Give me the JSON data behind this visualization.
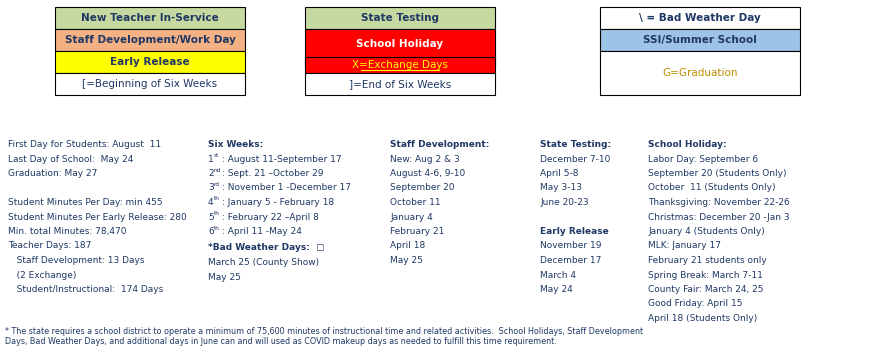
{
  "bg_color": "#ffffff",
  "blue": "#1F3864",
  "gold": "#BF8F00",
  "col1_text": [
    {
      "text": "First Day for Students: August  11",
      "bold": false
    },
    {
      "text": "Last Day of School:  May 24",
      "bold": false
    },
    {
      "text": "Graduation: May 27",
      "bold": false
    },
    {
      "text": "",
      "bold": false
    },
    {
      "text": "Student Minutes Per Day: min 455",
      "bold": false
    },
    {
      "text": "Student Minutes Per Early Release: 280",
      "bold": false
    },
    {
      "text": "Min. total Minutes: 78,470",
      "bold": false
    },
    {
      "text": "Teacher Days: 187",
      "bold": false
    },
    {
      "text": "   Staff Development: 13 Days",
      "bold": false
    },
    {
      "text": "   (2 Exchange)",
      "bold": false
    },
    {
      "text": "   Student/Instructional:  174 Days",
      "bold": false
    }
  ],
  "six_weeks_main": [
    "August 11-September 17",
    "Sept. 21 –October 29",
    "November 1 -December 17",
    "January 5 - February 18",
    "February 22 –April 8",
    "April 11 -May 24"
  ],
  "six_weeks_sups": [
    "st",
    "nd",
    "rd",
    "th",
    "th",
    "th"
  ],
  "six_weeks_nums": [
    "1",
    "2",
    "3",
    "4",
    "5",
    "6"
  ],
  "col3_lines": [
    {
      "text": "Staff Development:",
      "bold": true
    },
    {
      "text": "New: Aug 2 & 3",
      "bold": false
    },
    {
      "text": "August 4-6, 9-10",
      "bold": false
    },
    {
      "text": "September 20",
      "bold": false
    },
    {
      "text": "October 11",
      "bold": false
    },
    {
      "text": "January 4",
      "bold": false
    },
    {
      "text": "February 21",
      "bold": false
    },
    {
      "text": "April 18",
      "bold": false
    },
    {
      "text": "May 25",
      "bold": false
    }
  ],
  "col4_lines": [
    {
      "text": "State Testing:",
      "bold": true
    },
    {
      "text": "December 7-10",
      "bold": false
    },
    {
      "text": "April 5-8",
      "bold": false
    },
    {
      "text": "May 3-13",
      "bold": false
    },
    {
      "text": "June 20-23",
      "bold": false
    },
    {
      "text": "",
      "bold": false
    },
    {
      "text": "Early Release",
      "bold": true
    },
    {
      "text": "November 19",
      "bold": false
    },
    {
      "text": "December 17",
      "bold": false
    },
    {
      "text": "March 4",
      "bold": false
    },
    {
      "text": "May 24",
      "bold": false
    }
  ],
  "col5_lines": [
    {
      "text": "School Holiday:",
      "bold": true
    },
    {
      "text": "Labor Day: September 6",
      "bold": false
    },
    {
      "text": "September 20 (Students Only)",
      "bold": false
    },
    {
      "text": "October  11 (Students Only)",
      "bold": false
    },
    {
      "text": "Thanksgiving: November 22-26",
      "bold": false
    },
    {
      "text": "Christmas: December 20 -Jan 3",
      "bold": false
    },
    {
      "text": "January 4 (Students Only)",
      "bold": false
    },
    {
      "text": "MLK: January 17",
      "bold": false
    },
    {
      "text": "February 21 students only",
      "bold": false
    },
    {
      "text": "Spring Break: March 7-11",
      "bold": false
    },
    {
      "text": "County Fair: March 24, 25",
      "bold": false
    },
    {
      "text": "Good Friday: April 15",
      "bold": false
    },
    {
      "text": "April 18 (Students Only)",
      "bold": false
    }
  ],
  "footnote": "* The state requires a school district to operate a minimum of 75,600 minutes of instructional time and related activities.  School Holidays, Staff Development\nDays, Bad Weather Days, and additional days in June can and will used as COVID makeup days as needed to fulfill this time requirement."
}
